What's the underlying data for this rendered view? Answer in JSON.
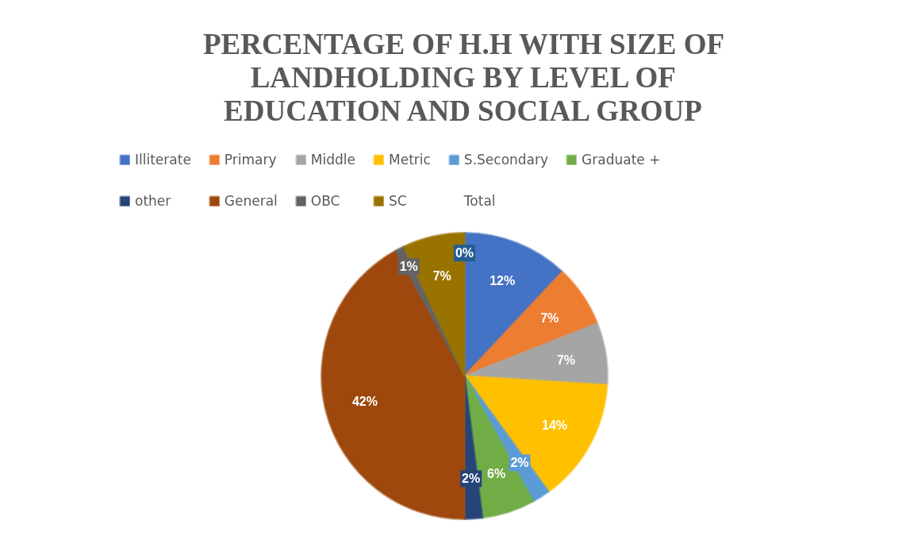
{
  "chart_data": {
    "type": "pie",
    "title": "PERCENTAGE OF H.H WITH SIZE OF LANDHOLDING BY LEVEL OF EDUCATION AND SOCIAL GROUP",
    "categories": [
      "Illiterate",
      "Primary",
      "Middle",
      "Metric",
      "S.Secondary",
      "Graduate +",
      "other",
      "General",
      "OBC",
      "SC",
      "Total"
    ],
    "values": [
      12,
      7,
      7,
      14,
      2,
      6,
      2,
      42,
      1,
      7,
      0
    ],
    "colors": [
      "#4472c4",
      "#ed7d31",
      "#a5a5a5",
      "#ffc000",
      "#5b9bd5",
      "#70ad47",
      "#264478",
      "#9e480e",
      "#636363",
      "#997300",
      "#255e91"
    ],
    "value_labels": [
      "12%",
      "7%",
      "7%",
      "14%",
      "2%",
      "6%",
      "2%",
      "42%",
      "1%",
      "7%",
      "0%"
    ],
    "legend": "top"
  }
}
